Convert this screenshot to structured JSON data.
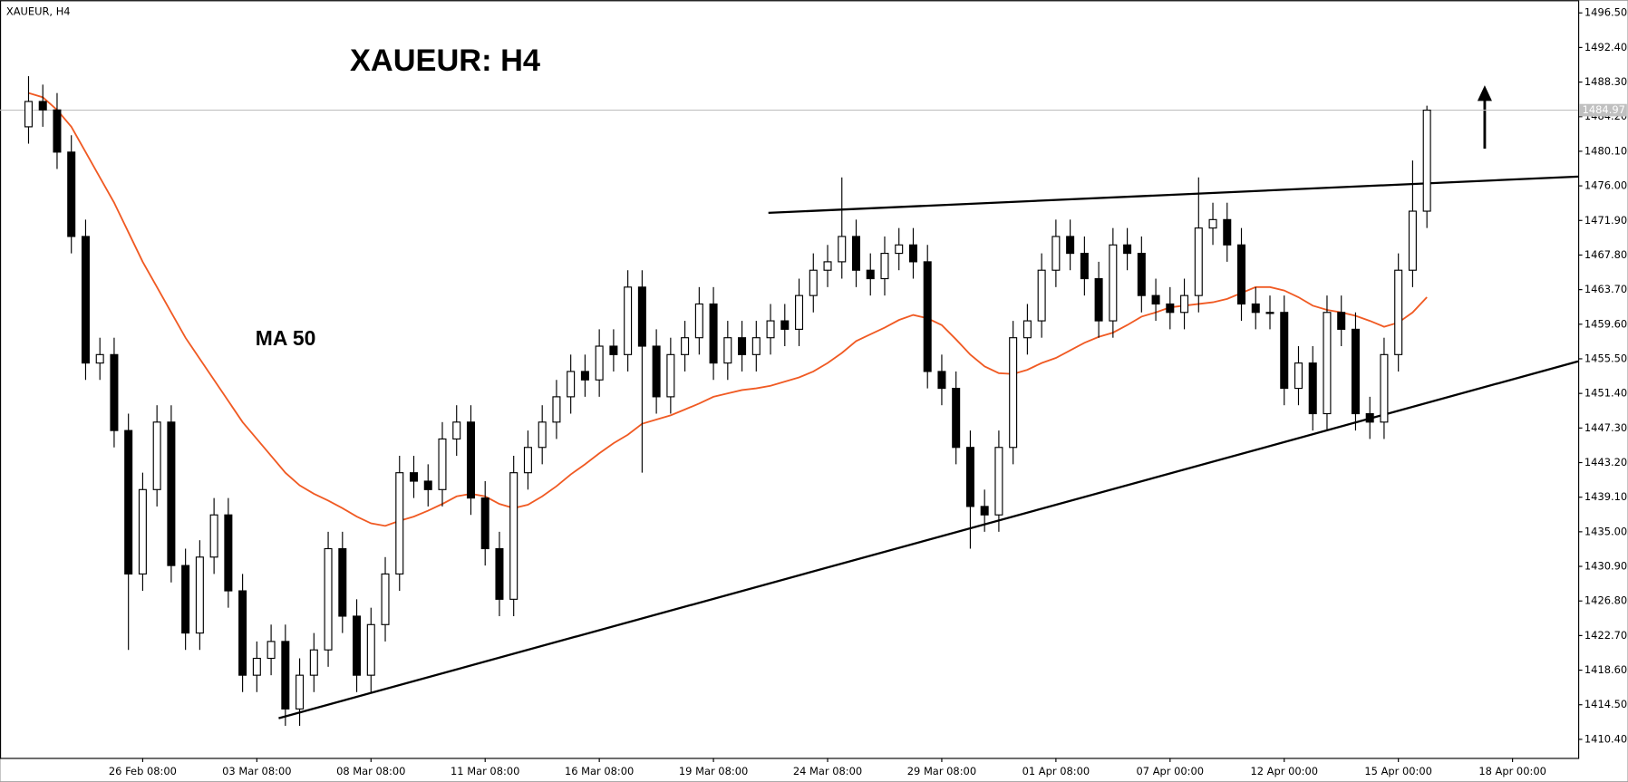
{
  "chart_data": {
    "type": "candlestick",
    "symbol_label": "XAUEUR, H4",
    "title": "XAUEUR: H4",
    "annotation": "MA 50",
    "x": [
      0,
      1,
      2,
      3,
      4,
      5,
      6,
      7,
      8,
      9,
      10,
      11,
      12,
      13,
      14,
      15,
      16,
      17,
      18,
      19,
      20,
      21,
      22,
      23,
      24,
      25,
      26,
      27,
      28,
      29,
      30,
      31,
      32,
      33,
      34,
      35,
      36,
      37,
      38,
      39,
      40,
      41,
      42,
      43,
      44,
      45,
      46,
      47,
      48,
      49,
      50,
      51,
      52,
      53,
      54,
      55,
      56,
      57,
      58,
      59,
      60,
      61,
      62,
      63,
      64,
      65,
      66,
      67,
      68,
      69,
      70,
      71,
      72,
      73,
      74,
      75,
      76,
      77,
      78,
      79,
      80,
      81,
      82,
      83,
      84,
      85,
      86,
      87,
      88,
      89,
      90,
      91,
      92,
      93,
      94,
      95,
      96,
      97,
      98
    ],
    "open": [
      1483,
      1486,
      1485,
      1480,
      1470,
      1455,
      1456,
      1447,
      1430,
      1440,
      1448,
      1431,
      1423,
      1432,
      1437,
      1428,
      1418,
      1420,
      1422,
      1414,
      1418,
      1421,
      1433,
      1425,
      1418,
      1424,
      1430,
      1442,
      1441,
      1440,
      1446,
      1448,
      1439,
      1433,
      1427,
      1442,
      1445,
      1448,
      1451,
      1454,
      1453,
      1457,
      1456,
      1464,
      1457,
      1451,
      1456,
      1458,
      1462,
      1455,
      1458,
      1456,
      1458,
      1460,
      1459,
      1463,
      1466,
      1467,
      1470,
      1466,
      1465,
      1468,
      1469,
      1467,
      1454,
      1452,
      1445,
      1438,
      1437,
      1445,
      1458,
      1460,
      1466,
      1470,
      1468,
      1465,
      1460,
      1469,
      1468,
      1463,
      1462,
      1461,
      1463,
      1471,
      1472,
      1469,
      1462,
      1461,
      1461,
      1452,
      1455,
      1449,
      1461,
      1459,
      1449,
      1448,
      1456,
      1466,
      1473
    ],
    "high": [
      1489,
      1488,
      1487,
      1482,
      1472,
      1458,
      1458,
      1449,
      1442,
      1450,
      1450,
      1433,
      1434,
      1439,
      1439,
      1430,
      1422,
      1424,
      1424,
      1420,
      1423,
      1435,
      1435,
      1427,
      1426,
      1432,
      1444,
      1444,
      1443,
      1448,
      1450,
      1450,
      1441,
      1435,
      1444,
      1447,
      1450,
      1453,
      1456,
      1456,
      1459,
      1459,
      1466,
      1466,
      1459,
      1458,
      1460,
      1464,
      1464,
      1460,
      1460,
      1460,
      1462,
      1462,
      1465,
      1468,
      1469,
      1477,
      1472,
      1468,
      1470,
      1471,
      1471,
      1469,
      1456,
      1454,
      1447,
      1440,
      1447,
      1460,
      1462,
      1468,
      1472,
      1472,
      1470,
      1467,
      1471,
      1471,
      1470,
      1465,
      1464,
      1465,
      1477,
      1474,
      1474,
      1471,
      1464,
      1463,
      1463,
      1457,
      1457,
      1463,
      1463,
      1461,
      1451,
      1458,
      1468,
      1479,
      1485.5
    ],
    "low": [
      1481,
      1483,
      1478,
      1468,
      1453,
      1453,
      1445,
      1421,
      1428,
      1438,
      1429,
      1421,
      1421,
      1430,
      1426,
      1416,
      1416,
      1418,
      1412,
      1412,
      1416,
      1419,
      1423,
      1416,
      1416,
      1422,
      1428,
      1439,
      1438,
      1438,
      1444,
      1437,
      1431,
      1425,
      1425,
      1440,
      1443,
      1446,
      1449,
      1451,
      1451,
      1454,
      1454,
      1442,
      1449,
      1449,
      1454,
      1456,
      1453,
      1453,
      1454,
      1454,
      1456,
      1457,
      1457,
      1461,
      1464,
      1465,
      1464,
      1463,
      1463,
      1466,
      1465,
      1452,
      1450,
      1443,
      1433,
      1435,
      1435,
      1443,
      1456,
      1458,
      1464,
      1466,
      1463,
      1458,
      1458,
      1466,
      1461,
      1460,
      1459,
      1459,
      1461,
      1469,
      1467,
      1460,
      1459,
      1459,
      1450,
      1450,
      1447,
      1447,
      1457,
      1447,
      1446,
      1446,
      1454,
      1464,
      1471
    ],
    "close": [
      1486,
      1485,
      1480,
      1470,
      1455,
      1456,
      1447,
      1430,
      1440,
      1448,
      1431,
      1423,
      1432,
      1437,
      1428,
      1418,
      1420,
      1422,
      1414,
      1418,
      1421,
      1433,
      1425,
      1418,
      1424,
      1430,
      1442,
      1441,
      1440,
      1446,
      1448,
      1439,
      1433,
      1427,
      1442,
      1445,
      1448,
      1451,
      1454,
      1453,
      1457,
      1456,
      1464,
      1457,
      1451,
      1456,
      1458,
      1462,
      1455,
      1458,
      1456,
      1458,
      1460,
      1459,
      1463,
      1466,
      1467,
      1470,
      1466,
      1465,
      1468,
      1469,
      1467,
      1454,
      1452,
      1445,
      1438,
      1437,
      1445,
      1458,
      1460,
      1466,
      1470,
      1468,
      1465,
      1460,
      1469,
      1468,
      1463,
      1462,
      1461,
      1463,
      1471,
      1472,
      1469,
      1462,
      1461,
      1461,
      1452,
      1455,
      1449,
      1461,
      1459,
      1449,
      1448,
      1456,
      1466,
      1473,
      1484.97
    ],
    "ma": {
      "color": "#f05a23",
      "values": [
        1487,
        1486.5,
        1485,
        1483,
        1480,
        1477,
        1474,
        1470.5,
        1467,
        1464,
        1461,
        1458,
        1455.5,
        1453,
        1450.5,
        1448,
        1446,
        1444,
        1442,
        1440.5,
        1439.5,
        1438.7,
        1437.8,
        1436.8,
        1436,
        1435.7,
        1436.3,
        1436.8,
        1437.5,
        1438.3,
        1439.2,
        1439.5,
        1439.2,
        1438.3,
        1437.8,
        1438.2,
        1439.2,
        1440.4,
        1441.8,
        1443,
        1444.3,
        1445.5,
        1446.5,
        1447.8,
        1448.3,
        1448.8,
        1449.5,
        1450.2,
        1451,
        1451.4,
        1451.8,
        1452,
        1452.3,
        1452.8,
        1453.3,
        1454,
        1455,
        1456.2,
        1457.6,
        1458.4,
        1459.2,
        1460.1,
        1460.7,
        1460.3,
        1459.5,
        1457.8,
        1456,
        1454.6,
        1453.8,
        1453.7,
        1454.2,
        1455,
        1455.6,
        1456.5,
        1457.4,
        1458.1,
        1458.6,
        1459.5,
        1460.5,
        1461,
        1461.6,
        1461.8,
        1462,
        1462.2,
        1462.6,
        1463.3,
        1464,
        1464,
        1463.6,
        1462.8,
        1461.8,
        1461.3,
        1461,
        1460.6,
        1460,
        1459.3,
        1459.8,
        1461,
        1462.8
      ]
    },
    "trendlines": [
      {
        "x": [
          51.85,
          108.6
        ],
        "y": [
          1472.8,
          1477.1
        ]
      },
      {
        "x": [
          17.53,
          108.6
        ],
        "y": [
          1412.9,
          1455.2
        ]
      }
    ],
    "last_price": 1484.97,
    "xlim": [
      -2,
      108.6
    ],
    "ylim": [
      1408.2,
      1498
    ],
    "xticks": [
      {
        "value": 8,
        "label": "26 Feb 08:00"
      },
      {
        "value": 16,
        "label": "03 Mar 08:00"
      },
      {
        "value": 24,
        "label": "08 Mar 08:00"
      },
      {
        "value": 32,
        "label": "11 Mar 08:00"
      },
      {
        "value": 40,
        "label": "16 Mar 08:00"
      },
      {
        "value": 48,
        "label": "19 Mar 08:00"
      },
      {
        "value": 56,
        "label": "24 Mar 08:00"
      },
      {
        "value": 64,
        "label": "29 Mar 08:00"
      },
      {
        "value": 72,
        "label": "01 Apr 08:00"
      },
      {
        "value": 80,
        "label": "07 Apr 00:00"
      },
      {
        "value": 88,
        "label": "12 Apr 00:00"
      },
      {
        "value": 96,
        "label": "15 Apr 00:00"
      },
      {
        "value": 104,
        "label": "18 Apr 00:00"
      }
    ],
    "yticks": [
      {
        "value": 1410.4,
        "label": "1410.40"
      },
      {
        "value": 1414.5,
        "label": "1414.50"
      },
      {
        "value": 1418.6,
        "label": "1418.60"
      },
      {
        "value": 1422.7,
        "label": "1422.70"
      },
      {
        "value": 1426.8,
        "label": "1426.80"
      },
      {
        "value": 1430.9,
        "label": "1430.90"
      },
      {
        "value": 1435,
        "label": "1435.00"
      },
      {
        "value": 1439.1,
        "label": "1439.10"
      },
      {
        "value": 1443.2,
        "label": "1443.20"
      },
      {
        "value": 1447.3,
        "label": "1447.30"
      },
      {
        "value": 1451.4,
        "label": "1451.40"
      },
      {
        "value": 1455.5,
        "label": "1455.50"
      },
      {
        "value": 1459.6,
        "label": "1459.60"
      },
      {
        "value": 1463.7,
        "label": "1463.70"
      },
      {
        "value": 1467.8,
        "label": "1467.80"
      },
      {
        "value": 1471.9,
        "label": "1471.90"
      },
      {
        "value": 1476,
        "label": "1476.00"
      },
      {
        "value": 1480.1,
        "label": "1480.10"
      },
      {
        "value": 1484.2,
        "label": "1484.20"
      },
      {
        "value": 1488.3,
        "label": "1488.30"
      },
      {
        "value": 1492.4,
        "label": "1492.40"
      },
      {
        "value": 1496.5,
        "label": "1496.50"
      }
    ],
    "grid": false
  }
}
